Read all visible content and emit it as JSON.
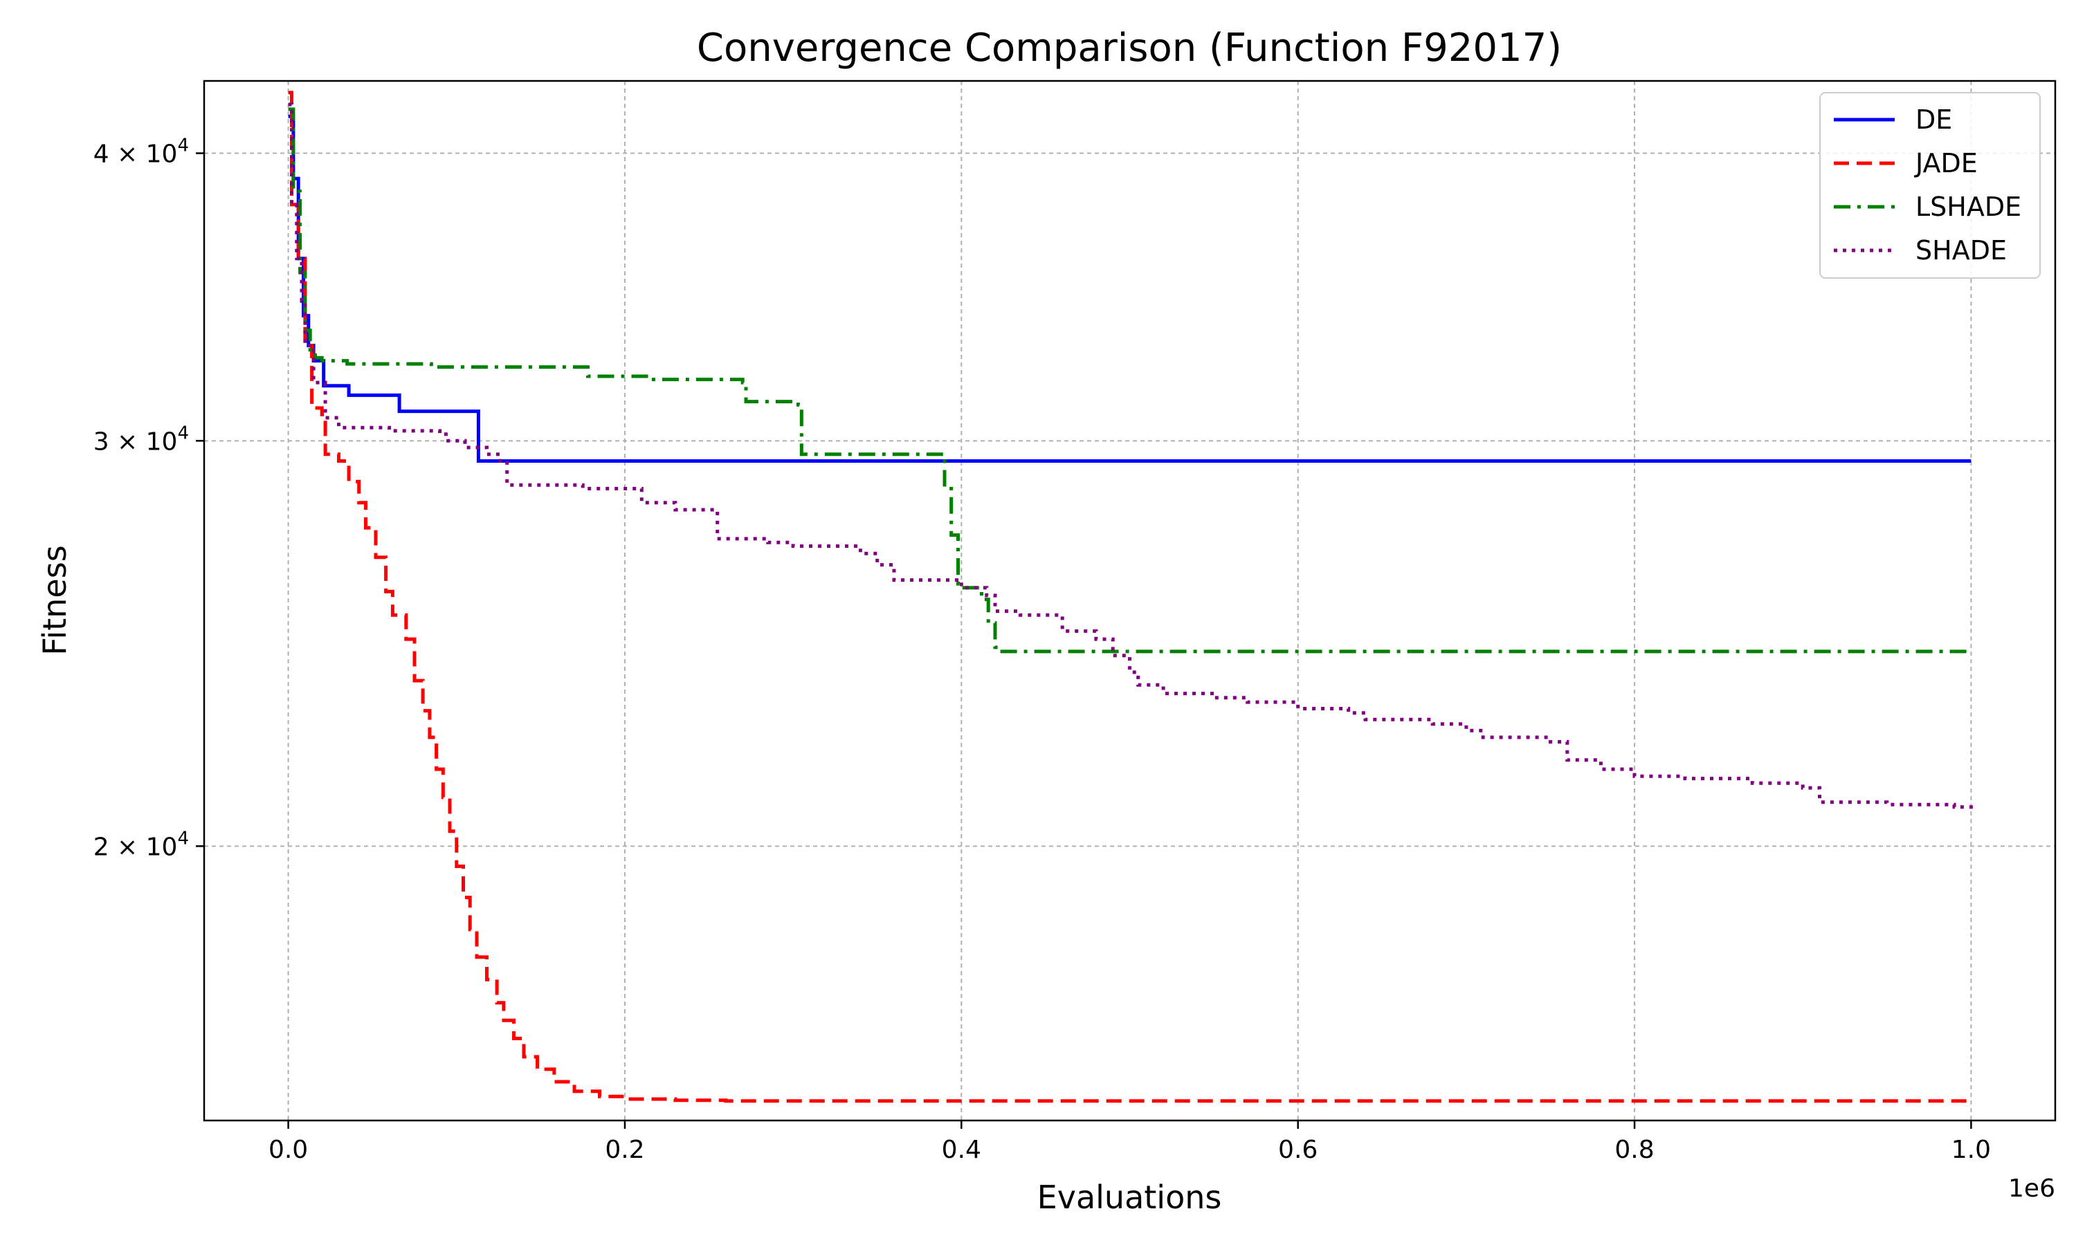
{
  "chart_data": {
    "type": "line",
    "title": "Convergence Comparison (Function F92017)",
    "xlabel": "Evaluations",
    "ylabel": "Fitness",
    "x_offset_label": "1e6",
    "xscale": "linear",
    "yscale": "log",
    "xlim": [
      -50000,
      1050000
    ],
    "ylim": [
      15200,
      43000
    ],
    "grid": true,
    "legend_position": "top-right",
    "x_ticks": [
      {
        "value": 0,
        "label": "0.0"
      },
      {
        "value": 200000,
        "label": "0.2"
      },
      {
        "value": 400000,
        "label": "0.4"
      },
      {
        "value": 600000,
        "label": "0.6"
      },
      {
        "value": 800000,
        "label": "0.8"
      },
      {
        "value": 1000000,
        "label": "1.0"
      }
    ],
    "y_ticks": [
      {
        "value": 20000,
        "mantissa": "2",
        "exponent": "4"
      },
      {
        "value": 30000,
        "mantissa": "3",
        "exponent": "4"
      },
      {
        "value": 40000,
        "mantissa": "4",
        "exponent": "4"
      }
    ],
    "series": [
      {
        "name": "DE",
        "color": "#0000ff",
        "style": "solid",
        "x": [
          0,
          3000,
          6000,
          9000,
          12000,
          15000,
          20000,
          21000,
          35000,
          36000,
          65000,
          66000,
          112000,
          113000,
          1000000
        ],
        "y": [
          41500,
          39000,
          36000,
          34000,
          33000,
          32500,
          32500,
          31700,
          31700,
          31400,
          31400,
          30900,
          30900,
          29400,
          29400
        ]
      },
      {
        "name": "JADE",
        "color": "#ff0000",
        "style": "dashed",
        "x": [
          0,
          2000,
          6000,
          10000,
          14000,
          20000,
          22000,
          30000,
          36000,
          42000,
          46000,
          52000,
          58000,
          62000,
          70000,
          75000,
          80000,
          84000,
          88000,
          92000,
          96000,
          100000,
          104000,
          108000,
          112000,
          118000,
          124000,
          128000,
          134000,
          140000,
          148000,
          158000,
          170000,
          185000,
          200000,
          230000,
          260000,
          1000000
        ],
        "y": [
          42500,
          38000,
          36000,
          33000,
          31000,
          30800,
          29600,
          29400,
          28800,
          28200,
          27500,
          26700,
          25800,
          25200,
          24600,
          23600,
          22900,
          22300,
          21600,
          21000,
          20300,
          19600,
          19000,
          18400,
          17900,
          17500,
          17100,
          16800,
          16500,
          16200,
          16000,
          15800,
          15650,
          15570,
          15530,
          15510,
          15500,
          15500
        ]
      },
      {
        "name": "LSHADE",
        "color": "#008000",
        "style": "dashdot",
        "x": [
          0,
          3000,
          7000,
          10000,
          13000,
          16000,
          20000,
          35000,
          85000,
          178000,
          215000,
          270000,
          272000,
          303000,
          305000,
          386000,
          390000,
          394000,
          398000,
          400000,
          412000,
          416000,
          420000,
          422000,
          1000000
        ],
        "y": [
          41800,
          38500,
          35500,
          33500,
          32800,
          32600,
          32500,
          32400,
          32300,
          32000,
          31900,
          31800,
          31200,
          31100,
          29600,
          29600,
          28600,
          27300,
          26000,
          25900,
          25600,
          25000,
          24400,
          24300,
          24300
        ]
      },
      {
        "name": "SHADE",
        "color": "#800080",
        "style": "dotted",
        "x": [
          0,
          2000,
          5000,
          8000,
          10000,
          15000,
          22000,
          30000,
          60000,
          90000,
          95000,
          105000,
          118000,
          126000,
          130000,
          175000,
          210000,
          230000,
          255000,
          285000,
          300000,
          340000,
          350000,
          360000,
          400000,
          415000,
          420000,
          435000,
          460000,
          480000,
          490000,
          500000,
          505000,
          520000,
          550000,
          570000,
          600000,
          630000,
          640000,
          680000,
          700000,
          710000,
          750000,
          760000,
          780000,
          800000,
          830000,
          870000,
          900000,
          910000,
          950000,
          990000,
          1000000
        ],
        "y": [
          42000,
          38000,
          36000,
          34500,
          33000,
          31800,
          30700,
          30400,
          30300,
          30200,
          30000,
          29800,
          29600,
          29400,
          28700,
          28600,
          28200,
          28000,
          27200,
          27100,
          27000,
          26800,
          26500,
          26100,
          25900,
          25700,
          25300,
          25200,
          24800,
          24600,
          24200,
          23800,
          23500,
          23300,
          23200,
          23100,
          22950,
          22850,
          22700,
          22600,
          22450,
          22300,
          22200,
          21800,
          21600,
          21450,
          21400,
          21300,
          21200,
          20900,
          20850,
          20800,
          20750
        ]
      }
    ]
  }
}
